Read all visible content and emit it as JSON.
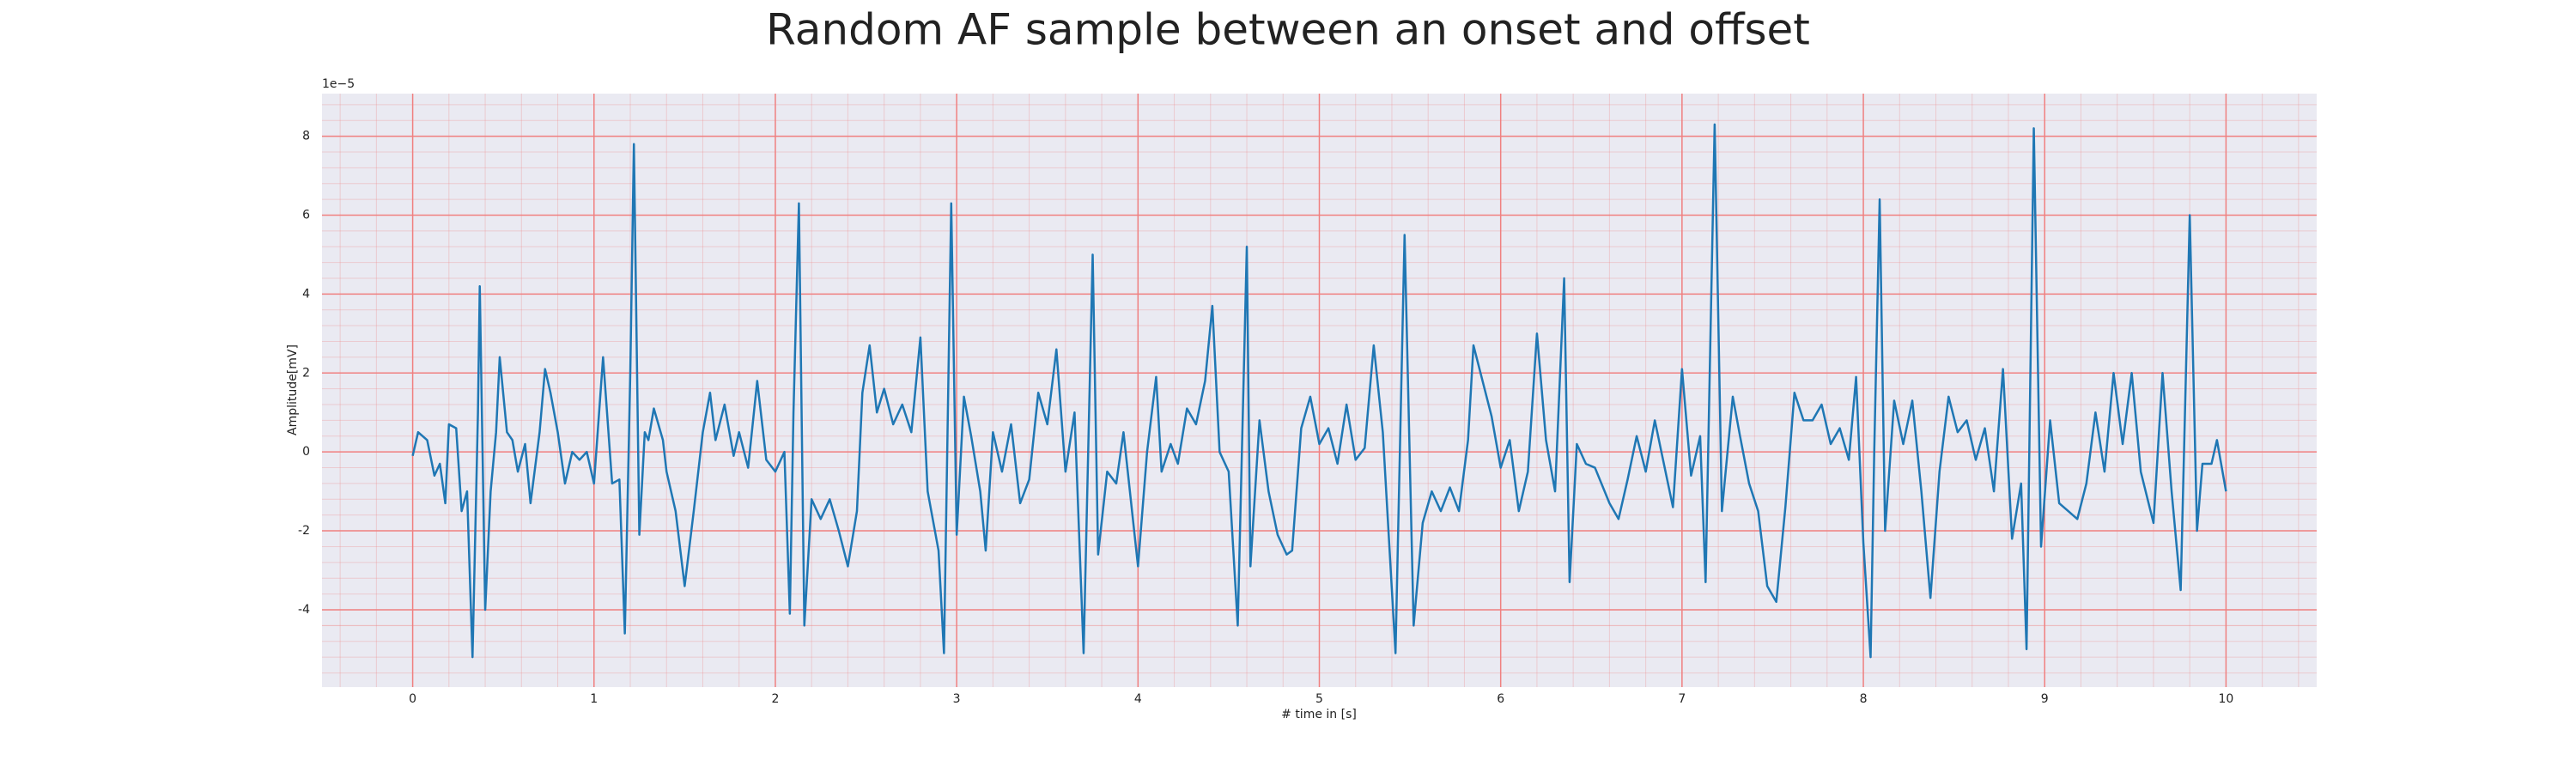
{
  "chart_data": {
    "type": "line",
    "title": "Random AF sample between an onset and offset",
    "xlabel": "# time in [s]",
    "ylabel": "Amplitude[mV]",
    "offset_label": "1e−5",
    "xlim": [
      -0.5,
      10.5
    ],
    "ylim": [
      -5.96,
      9.08
    ],
    "xticks": [
      0,
      1,
      2,
      3,
      4,
      5,
      6,
      7,
      8,
      9,
      10
    ],
    "yticks": [
      -4,
      -2,
      0,
      2,
      4,
      6,
      8
    ],
    "grid": true,
    "grid_color": "#f08080",
    "minor_grid": true,
    "background": "#eaeaf2",
    "series": [
      {
        "color": "#1f77b4",
        "x": [
          0.0,
          0.03,
          0.08,
          0.12,
          0.15,
          0.18,
          0.2,
          0.24,
          0.27,
          0.3,
          0.33,
          0.36,
          0.37,
          0.4,
          0.43,
          0.46,
          0.48,
          0.52,
          0.55,
          0.58,
          0.62,
          0.65,
          0.7,
          0.73,
          0.76,
          0.8,
          0.84,
          0.88,
          0.92,
          0.96,
          1.0,
          1.05,
          1.1,
          1.14,
          1.17,
          1.2,
          1.22,
          1.25,
          1.28,
          1.3,
          1.33,
          1.38,
          1.4,
          1.45,
          1.5,
          1.55,
          1.6,
          1.64,
          1.67,
          1.72,
          1.77,
          1.8,
          1.85,
          1.9,
          1.95,
          2.0,
          2.05,
          2.08,
          2.1,
          2.13,
          2.16,
          2.2,
          2.25,
          2.3,
          2.35,
          2.4,
          2.45,
          2.48,
          2.52,
          2.56,
          2.6,
          2.65,
          2.7,
          2.75,
          2.8,
          2.84,
          2.9,
          2.93,
          2.97,
          3.0,
          3.04,
          3.08,
          3.13,
          3.16,
          3.2,
          3.25,
          3.3,
          3.35,
          3.4,
          3.45,
          3.5,
          3.55,
          3.6,
          3.65,
          3.7,
          3.75,
          3.78,
          3.83,
          3.88,
          3.92,
          3.96,
          4.0,
          4.05,
          4.1,
          4.13,
          4.18,
          4.22,
          4.27,
          4.32,
          4.37,
          4.41,
          4.45,
          4.5,
          4.55,
          4.6,
          4.62,
          4.67,
          4.72,
          4.77,
          4.82,
          4.85,
          4.9,
          4.95,
          5.0,
          5.05,
          5.1,
          5.15,
          5.2,
          5.25,
          5.3,
          5.35,
          5.42,
          5.47,
          5.52,
          5.57,
          5.62,
          5.67,
          5.72,
          5.77,
          5.82,
          5.85,
          5.9,
          5.95,
          6.0,
          6.05,
          6.1,
          6.15,
          6.2,
          6.25,
          6.3,
          6.35,
          6.38,
          6.42,
          6.47,
          6.52,
          6.6,
          6.65,
          6.7,
          6.75,
          6.8,
          6.85,
          6.9,
          6.95,
          7.0,
          7.05,
          7.1,
          7.13,
          7.18,
          7.22,
          7.28,
          7.32,
          7.37,
          7.42,
          7.47,
          7.52,
          7.57,
          7.62,
          7.67,
          7.72,
          7.77,
          7.82,
          7.87,
          7.92,
          7.96,
          8.0,
          8.04,
          8.06,
          8.09,
          8.12,
          8.17,
          8.22,
          8.27,
          8.32,
          8.37,
          8.42,
          8.47,
          8.52,
          8.57,
          8.62,
          8.67,
          8.72,
          8.77,
          8.82,
          8.87,
          8.9,
          8.94,
          8.98,
          9.03,
          9.08,
          9.13,
          9.18,
          9.23,
          9.28,
          9.33,
          9.38,
          9.43,
          9.48,
          9.53,
          9.6,
          9.65,
          9.7,
          9.75,
          9.8,
          9.84,
          9.87,
          9.92,
          9.95,
          10.0
        ],
        "values": [
          -0.1,
          0.5,
          0.3,
          -0.6,
          -0.3,
          -1.3,
          0.7,
          0.6,
          -1.5,
          -1.0,
          -5.2,
          1.0,
          4.2,
          -4.0,
          -1.0,
          0.5,
          2.4,
          0.5,
          0.3,
          -0.5,
          0.2,
          -1.3,
          0.5,
          2.1,
          1.5,
          0.5,
          -0.8,
          0,
          -0.2,
          0,
          -0.8,
          2.4,
          -0.8,
          -0.7,
          -4.6,
          2.0,
          7.8,
          -2.1,
          0.5,
          0.3,
          1.1,
          0.3,
          -0.5,
          -1.5,
          -3.4,
          -1.5,
          0.5,
          1.5,
          0.3,
          1.2,
          -0.1,
          0.5,
          -0.4,
          1.8,
          -0.2,
          -0.5,
          0,
          -4.1,
          1.0,
          6.3,
          -4.4,
          -1.2,
          -1.7,
          -1.2,
          -2.0,
          -2.9,
          -1.5,
          1.5,
          2.7,
          1.0,
          1.6,
          0.7,
          1.2,
          0.5,
          2.9,
          -1.0,
          -2.5,
          -5.1,
          6.3,
          -2.1,
          1.4,
          0.4,
          -1.0,
          -2.5,
          0.5,
          -0.5,
          0.7,
          -1.3,
          -0.7,
          1.5,
          0.7,
          2.6,
          -0.5,
          1.0,
          -5.1,
          5.0,
          -2.6,
          -0.5,
          -0.8,
          0.5,
          -1.2,
          -2.9,
          0.0,
          1.9,
          -0.5,
          0.2,
          -0.3,
          1.1,
          0.7,
          1.8,
          3.7,
          0.0,
          -0.5,
          -4.4,
          5.2,
          -2.9,
          0.8,
          -1.0,
          -2.1,
          -2.6,
          -2.5,
          0.6,
          1.4,
          0.2,
          0.6,
          -0.3,
          1.2,
          -0.2,
          0.1,
          2.7,
          0.5,
          -5.1,
          5.5,
          -4.4,
          -1.8,
          -1.0,
          -1.5,
          -0.9,
          -1.5,
          0.3,
          2.7,
          1.8,
          0.9,
          -0.4,
          0.3,
          -1.5,
          -0.5,
          3.0,
          0.3,
          -1.0,
          4.4,
          -3.3,
          0.2,
          -0.3,
          -0.4,
          -1.3,
          -1.7,
          -0.7,
          0.4,
          -0.5,
          0.8,
          -0.3,
          -1.4,
          2.1,
          -0.6,
          0.4,
          -3.3,
          8.3,
          -1.5,
          1.4,
          0.4,
          -0.8,
          -1.5,
          -3.4,
          -3.8,
          -1.4,
          1.5,
          0.8,
          0.8,
          1.2,
          0.2,
          0.6,
          -0.2,
          1.9,
          -2.3,
          -5.2,
          0.0,
          6.4,
          -2.0,
          1.3,
          0.2,
          1.3,
          -1.0,
          -3.7,
          -0.5,
          1.4,
          0.5,
          0.8,
          -0.2,
          0.6,
          -1.0,
          2.1,
          -2.2,
          -0.8,
          -5.0,
          8.2,
          -2.4,
          0.8,
          -1.3,
          -1.5,
          -1.7,
          -0.8,
          1.0,
          -0.5,
          2.0,
          0.2,
          2.0,
          -0.5,
          -1.8,
          2.0,
          -1.0,
          -3.5,
          6.0,
          -2.0,
          -0.3,
          -0.3,
          0.3,
          -1.0
        ]
      }
    ]
  }
}
